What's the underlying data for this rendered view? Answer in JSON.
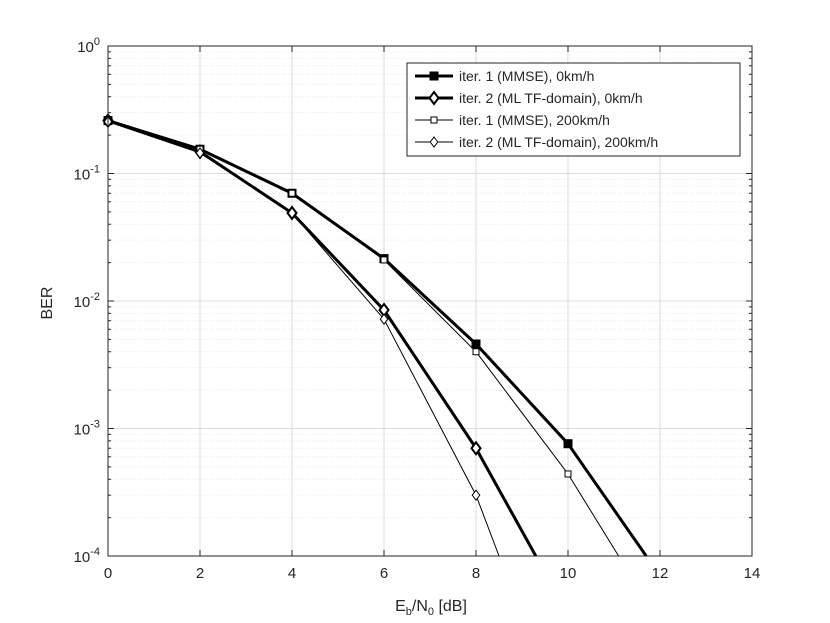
{
  "chart_data": {
    "type": "line",
    "title": "",
    "xlabel": {
      "main": "E",
      "sub1": "b",
      "mid": "/N",
      "sub2": "0",
      "tail": " [dB]"
    },
    "ylabel": "BER",
    "xlim": [
      0,
      14
    ],
    "ylim": [
      0.0001,
      1
    ],
    "yscale": "log",
    "grid": true,
    "minor_grid": true,
    "legend_placement": "top-right",
    "xticks": [
      "0",
      "2",
      "4",
      "6",
      "8",
      "10",
      "12",
      "14"
    ],
    "yticks": [
      {
        "base": "10",
        "exp": "0"
      },
      {
        "base": "10",
        "exp": "-1"
      },
      {
        "base": "10",
        "exp": "-2"
      },
      {
        "base": "10",
        "exp": "-3"
      },
      {
        "base": "10",
        "exp": "-4"
      }
    ],
    "series": [
      {
        "name": "iter. 1 (MMSE), 0km/h",
        "marker": "square-filled",
        "line": "thick",
        "x": [
          0,
          2,
          4,
          6,
          8,
          10,
          11.7
        ],
        "y": [
          0.26,
          0.155,
          0.07,
          0.0215,
          0.0046,
          0.00076,
          0.0001
        ]
      },
      {
        "name": "iter. 2 (ML TF-domain), 0km/h",
        "marker": "diamond-open",
        "line": "thick",
        "x": [
          0,
          2,
          4,
          6,
          8,
          9.3
        ],
        "y": [
          0.26,
          0.148,
          0.049,
          0.0085,
          0.0007,
          0.0001
        ]
      },
      {
        "name": "iter. 1 (MMSE), 200km/h",
        "marker": "square-open",
        "line": "thin",
        "x": [
          0,
          2,
          4,
          6,
          8,
          10,
          11.1
        ],
        "y": [
          0.255,
          0.155,
          0.07,
          0.021,
          0.004,
          0.00044,
          0.0001
        ]
      },
      {
        "name": "iter. 2 (ML TF-domain), 200km/h",
        "marker": "diamond-open",
        "line": "thin",
        "x": [
          0,
          2,
          4,
          6,
          8,
          8.5
        ],
        "y": [
          0.255,
          0.145,
          0.049,
          0.0072,
          0.0003,
          0.0001
        ]
      }
    ]
  }
}
